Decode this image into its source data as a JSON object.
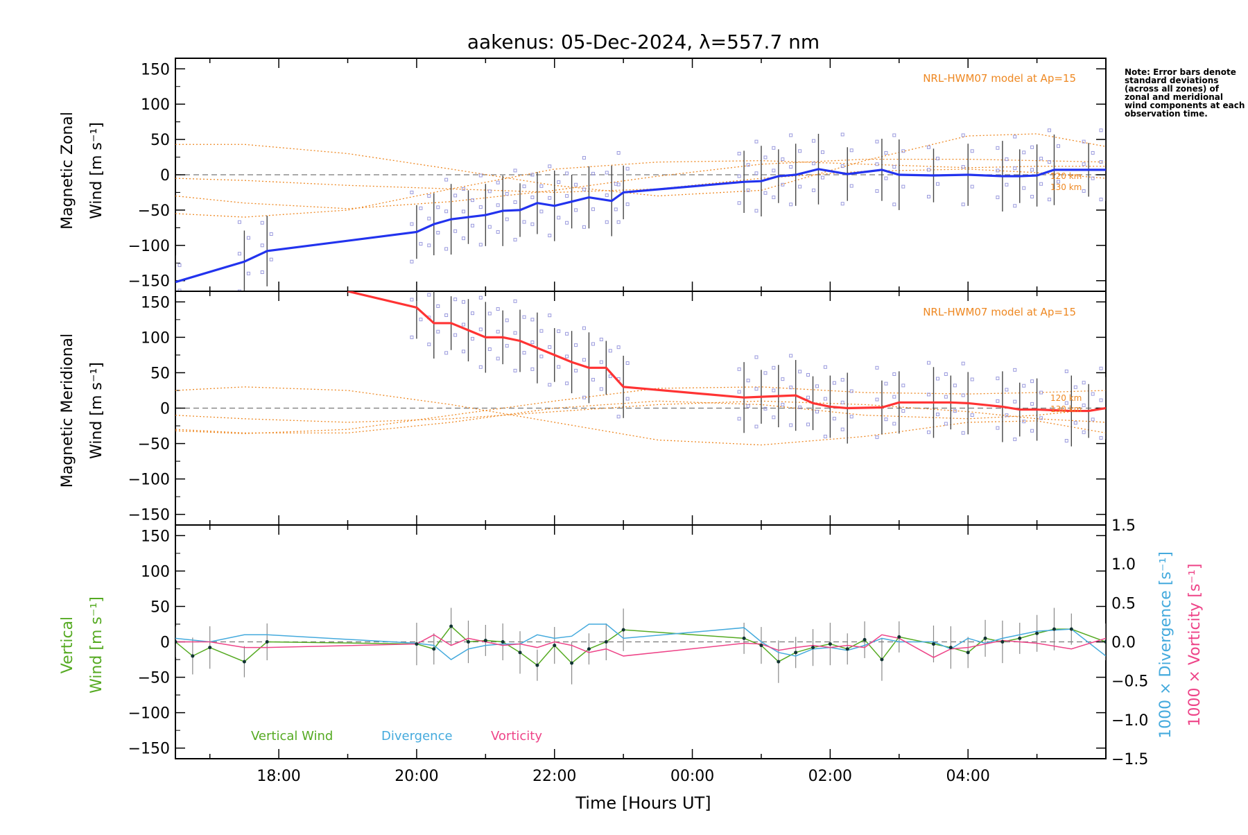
{
  "title": "aakenus: 05-Dec-2024, λ=557.7 nm",
  "note": "Note: Error bars denote standard deviations (across all zones) of zonal and meridional wind components at each observation time.",
  "colors": {
    "zonal": "#2233ee",
    "meridional": "#ff3333",
    "vertical": "#55aa22",
    "divergence": "#44aadd",
    "vorticity": "#ee4488",
    "model": "#ee8822",
    "scatter": "#9999dd",
    "errorbar": "#444444"
  },
  "chart_data": [
    {
      "type": "line",
      "panel": "zonal",
      "ylabel_line1": "Magnetic Zonal",
      "ylabel_line2": "Wind [m s⁻¹]",
      "ylim": [
        -165,
        165
      ],
      "yticks": [
        "150",
        "100",
        "50",
        "0",
        "−50",
        "−100",
        "−150"
      ],
      "annotation": "NRL-HWM07 model at Ap=15",
      "model_levels": [
        "120 km",
        "130 km"
      ],
      "series": [
        {
          "values": [
            [
              16.5,
              -152
            ],
            [
              17.5,
              -123
            ],
            [
              17.83,
              -108
            ],
            [
              20.0,
              -81
            ],
            [
              20.25,
              -70
            ],
            [
              20.5,
              -63
            ],
            [
              20.75,
              -60
            ],
            [
              21.0,
              -57
            ],
            [
              21.25,
              -51
            ],
            [
              21.5,
              -50
            ],
            [
              21.75,
              -40
            ],
            [
              22.0,
              -44
            ],
            [
              22.25,
              -38
            ],
            [
              22.5,
              -32
            ],
            [
              22.83,
              -37
            ],
            [
              23.0,
              -25
            ],
            [
              24.75,
              -10
            ],
            [
              25.0,
              -9
            ],
            [
              25.25,
              -2
            ],
            [
              25.5,
              0
            ],
            [
              25.83,
              8
            ],
            [
              26.25,
              1
            ],
            [
              26.75,
              7
            ],
            [
              27.0,
              0
            ],
            [
              27.5,
              -1
            ],
            [
              28.0,
              0
            ],
            [
              28.5,
              -2
            ],
            [
              28.75,
              -2
            ],
            [
              29.0,
              -1
            ],
            [
              29.25,
              7
            ],
            [
              29.75,
              7
            ],
            [
              30.0,
              7
            ]
          ]
        }
      ],
      "model_curves": [
        {
          "x": [
            16.5,
            17.5,
            19.0,
            20.5,
            22.0,
            23.5,
            25.0,
            26.5,
            28.0,
            29.0,
            30.0
          ],
          "y": [
            43,
            43,
            30,
            8,
            -15,
            -30,
            -22,
            20,
            55,
            58,
            40
          ]
        },
        {
          "x": [
            16.5,
            17.5,
            19.0,
            20.5,
            22.0,
            23.5,
            25.0,
            26.5,
            28.0,
            29.0,
            30.0
          ],
          "y": [
            -30,
            -40,
            -48,
            -38,
            -22,
            -2,
            15,
            22,
            22,
            20,
            18
          ]
        },
        {
          "x": [
            16.5,
            17.5,
            19.0,
            20.5,
            22.0,
            23.5,
            25.0,
            26.5,
            28.0,
            29.0,
            30.0
          ],
          "y": [
            -55,
            -60,
            -50,
            -20,
            8,
            18,
            20,
            15,
            10,
            12,
            12
          ]
        },
        {
          "x": [
            16.5,
            17.5,
            19.0,
            20.5,
            22.0,
            23.5,
            25.0,
            26.5,
            28.0,
            29.0,
            30.0
          ],
          "y": [
            -5,
            -8,
            -15,
            -20,
            -25,
            -20,
            -5,
            5,
            8,
            3,
            -5
          ]
        }
      ]
    },
    {
      "type": "line",
      "panel": "meridional",
      "ylabel_line1": "Magnetic Meridional",
      "ylabel_line2": "Wind [m s⁻¹]",
      "ylim": [
        -165,
        165
      ],
      "yticks": [
        "150",
        "100",
        "50",
        "0",
        "−50",
        "−100",
        "−150"
      ],
      "annotation": "NRL-HWM07 model at Ap=15",
      "model_levels": [
        "120 km",
        "130 km"
      ],
      "series": [
        {
          "values": [
            [
              19.0,
              165
            ],
            [
              20.0,
              142
            ],
            [
              20.25,
              120
            ],
            [
              20.5,
              120
            ],
            [
              20.75,
              110
            ],
            [
              21.0,
              100
            ],
            [
              21.25,
              100
            ],
            [
              21.5,
              95
            ],
            [
              21.75,
              85
            ],
            [
              22.0,
              75
            ],
            [
              22.25,
              65
            ],
            [
              22.5,
              57
            ],
            [
              22.75,
              57
            ],
            [
              23.0,
              30
            ],
            [
              24.75,
              15
            ],
            [
              25.0,
              16
            ],
            [
              25.25,
              17
            ],
            [
              25.5,
              18
            ],
            [
              25.75,
              7
            ],
            [
              26.0,
              2
            ],
            [
              26.25,
              0
            ],
            [
              26.75,
              1
            ],
            [
              27.0,
              8
            ],
            [
              27.5,
              8
            ],
            [
              27.75,
              8
            ],
            [
              28.0,
              7
            ],
            [
              28.5,
              2
            ],
            [
              28.75,
              -2
            ],
            [
              29.0,
              -2
            ],
            [
              29.5,
              -4
            ],
            [
              29.75,
              -4
            ],
            [
              30.0,
              0
            ]
          ]
        }
      ],
      "model_curves": [
        {
          "x": [
            16.5,
            17.5,
            19.0,
            20.5,
            22.0,
            23.5,
            25.0,
            26.5,
            28.0,
            29.0,
            30.0
          ],
          "y": [
            25,
            30,
            25,
            5,
            -20,
            -45,
            -52,
            -40,
            -20,
            -18,
            -35
          ]
        },
        {
          "x": [
            16.5,
            17.5,
            19.0,
            20.5,
            22.0,
            23.5,
            25.0,
            26.5,
            28.0,
            29.0,
            30.0
          ],
          "y": [
            -32,
            -36,
            -30,
            -10,
            10,
            28,
            30,
            22,
            20,
            22,
            25
          ]
        },
        {
          "x": [
            16.5,
            17.5,
            19.0,
            20.5,
            22.0,
            23.5,
            25.0,
            26.5,
            28.0,
            29.0,
            30.0
          ],
          "y": [
            -30,
            -35,
            -35,
            -20,
            0,
            10,
            5,
            -10,
            -15,
            -10,
            0
          ]
        },
        {
          "x": [
            16.5,
            17.5,
            19.0,
            20.5,
            22.0,
            23.5,
            25.0,
            26.5,
            28.0,
            29.0,
            30.0
          ],
          "y": [
            -10,
            -15,
            -20,
            -15,
            -5,
            5,
            10,
            5,
            -5,
            -15,
            -20
          ]
        }
      ]
    },
    {
      "type": "line",
      "panel": "vertical",
      "ylabel_line1": "Vertical",
      "ylabel_line2": "Wind [m s⁻¹]",
      "ylim": [
        -165,
        165
      ],
      "yticks": [
        "150",
        "100",
        "50",
        "0",
        "−50",
        "−100",
        "−150"
      ],
      "right_axis": {
        "ylim": [
          -1.5,
          1.5
        ],
        "yticks": [
          "1.5",
          "1.0",
          "0.5",
          "0.0",
          "−0.5",
          "−1.0",
          "−1.5"
        ],
        "label_div": "1000 × Divergence [s⁻¹]",
        "label_vort": "1000 × Vorticity [s⁻¹]"
      },
      "legend": [
        "Vertical Wind",
        "Divergence",
        "Vorticity"
      ],
      "xlabel": "Time [Hours UT]",
      "xlim": [
        16.5,
        30.0
      ],
      "xticks": [
        {
          "v": 18,
          "label": "18:00"
        },
        {
          "v": 20,
          "label": "20:00"
        },
        {
          "v": 22,
          "label": "22:00"
        },
        {
          "v": 24,
          "label": "00:00"
        },
        {
          "v": 26,
          "label": "02:00"
        },
        {
          "v": 28,
          "label": "04:00"
        }
      ],
      "series": [
        {
          "name": "Vertical Wind",
          "values": [
            [
              16.5,
              0
            ],
            [
              16.75,
              -20
            ],
            [
              17.0,
              -8
            ],
            [
              17.5,
              -28
            ],
            [
              17.83,
              0
            ],
            [
              20.0,
              -3
            ],
            [
              20.25,
              -10
            ],
            [
              20.5,
              22
            ],
            [
              20.75,
              0
            ],
            [
              21.0,
              2
            ],
            [
              21.25,
              0
            ],
            [
              21.5,
              -15
            ],
            [
              21.75,
              -33
            ],
            [
              22.0,
              -5
            ],
            [
              22.25,
              -30
            ],
            [
              22.5,
              -10
            ],
            [
              22.75,
              0
            ],
            [
              23.0,
              17
            ],
            [
              24.75,
              5
            ],
            [
              25.0,
              -5
            ],
            [
              25.25,
              -28
            ],
            [
              25.5,
              -15
            ],
            [
              25.75,
              -8
            ],
            [
              26.0,
              -3
            ],
            [
              26.25,
              -10
            ],
            [
              26.5,
              3
            ],
            [
              26.75,
              -25
            ],
            [
              27.0,
              7
            ],
            [
              27.5,
              -3
            ],
            [
              27.75,
              -8
            ],
            [
              28.0,
              -15
            ],
            [
              28.25,
              5
            ],
            [
              28.5,
              0
            ],
            [
              28.75,
              5
            ],
            [
              29.0,
              12
            ],
            [
              29.25,
              18
            ],
            [
              29.5,
              18
            ],
            [
              30.0,
              0
            ]
          ]
        },
        {
          "name": "Divergence",
          "values": [
            [
              16.5,
              5
            ],
            [
              17.0,
              0
            ],
            [
              17.5,
              10
            ],
            [
              17.83,
              10
            ],
            [
              20.0,
              -2
            ],
            [
              20.25,
              -5
            ],
            [
              20.5,
              -25
            ],
            [
              20.75,
              -10
            ],
            [
              21.0,
              -5
            ],
            [
              21.25,
              -3
            ],
            [
              21.5,
              -3
            ],
            [
              21.75,
              10
            ],
            [
              22.0,
              5
            ],
            [
              22.25,
              8
            ],
            [
              22.5,
              25
            ],
            [
              22.75,
              25
            ],
            [
              23.0,
              5
            ],
            [
              24.75,
              20
            ],
            [
              25.0,
              0
            ],
            [
              25.25,
              -15
            ],
            [
              25.5,
              -20
            ],
            [
              25.75,
              -10
            ],
            [
              26.0,
              -8
            ],
            [
              26.25,
              -12
            ],
            [
              26.5,
              -5
            ],
            [
              26.75,
              5
            ],
            [
              27.0,
              0
            ],
            [
              27.5,
              0
            ],
            [
              27.75,
              -10
            ],
            [
              28.0,
              5
            ],
            [
              28.25,
              -2
            ],
            [
              28.5,
              5
            ],
            [
              28.75,
              10
            ],
            [
              29.0,
              15
            ],
            [
              29.5,
              18
            ],
            [
              30.0,
              -20
            ]
          ]
        },
        {
          "name": "Vorticity",
          "values": [
            [
              16.5,
              0
            ],
            [
              17.0,
              0
            ],
            [
              17.5,
              -8
            ],
            [
              17.83,
              -8
            ],
            [
              20.0,
              -3
            ],
            [
              20.25,
              10
            ],
            [
              20.5,
              -5
            ],
            [
              20.75,
              5
            ],
            [
              21.0,
              0
            ],
            [
              21.25,
              -5
            ],
            [
              21.5,
              -3
            ],
            [
              21.75,
              -8
            ],
            [
              22.0,
              0
            ],
            [
              22.25,
              -5
            ],
            [
              22.5,
              -15
            ],
            [
              22.75,
              -10
            ],
            [
              23.0,
              -20
            ],
            [
              24.75,
              -2
            ],
            [
              25.0,
              -3
            ],
            [
              25.25,
              -12
            ],
            [
              25.5,
              -8
            ],
            [
              25.75,
              -5
            ],
            [
              26.0,
              -8
            ],
            [
              26.25,
              -5
            ],
            [
              26.5,
              -8
            ],
            [
              26.75,
              10
            ],
            [
              27.0,
              5
            ],
            [
              27.5,
              -22
            ],
            [
              27.75,
              -10
            ],
            [
              28.0,
              -8
            ],
            [
              28.25,
              -3
            ],
            [
              28.5,
              2
            ],
            [
              28.75,
              0
            ],
            [
              29.0,
              -2
            ],
            [
              29.5,
              -10
            ],
            [
              30.0,
              5
            ]
          ]
        }
      ]
    }
  ]
}
